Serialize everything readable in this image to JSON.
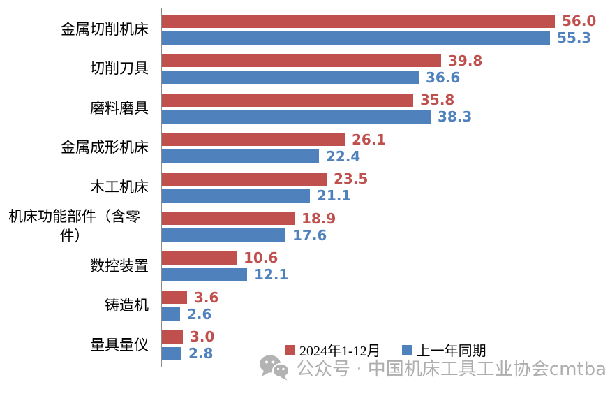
{
  "chart_data": {
    "type": "bar",
    "orientation": "horizontal",
    "title": "",
    "xlabel": "",
    "ylabel": "",
    "xlim": [
      0,
      60
    ],
    "grid": false,
    "value_labels": true,
    "legend_position": "bottom",
    "categories": [
      "金属切削机床",
      "切削刀具",
      "磨料磨具",
      "金属成形机床",
      "木工机床",
      "机床功能部件（含零件）",
      "数控装置",
      "铸造机",
      "量具量仪"
    ],
    "series": [
      {
        "name": "2024年1-12月",
        "color": "#c0504d",
        "values": [
          56.0,
          39.8,
          35.8,
          26.1,
          23.5,
          18.9,
          10.6,
          3.6,
          3.0
        ]
      },
      {
        "name": "上一年同期",
        "color": "#4f81bd",
        "values": [
          55.3,
          36.6,
          38.3,
          22.4,
          21.1,
          17.6,
          12.1,
          2.6,
          2.8
        ]
      }
    ],
    "axis_color": "#8c8c8c"
  },
  "watermark": {
    "icon": "wechat-icon",
    "text": "公众号 · 中国机床工具工业协会cmtba",
    "color": "#aeaeae"
  }
}
